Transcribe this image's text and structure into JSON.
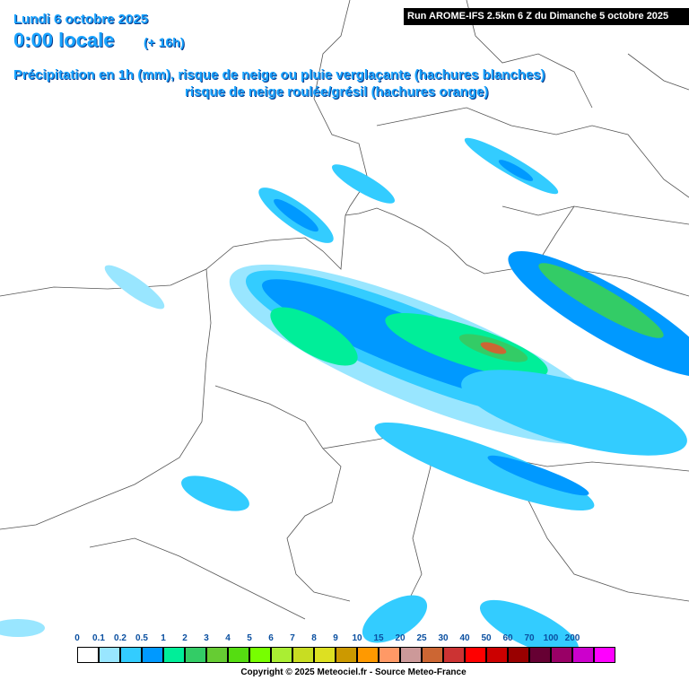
{
  "header": {
    "date": "Lundi 6 octobre 2025",
    "time": "0:00 locale",
    "lead": "(+ 16h)",
    "run": "Run AROME-IFS 2.5km 6 Z du Dimanche 5 octobre 2025",
    "line1": "Précipitation en 1h (mm), risque de neige ou pluie verglaçante (hachures blanches)",
    "line2": "risque de neige roulée/grésil (hachures orange)"
  },
  "legend": {
    "labels": [
      "0",
      "0.1",
      "0.2",
      "0.5",
      "1",
      "2",
      "3",
      "4",
      "5",
      "6",
      "7",
      "8",
      "9",
      "10",
      "15",
      "20",
      "25",
      "30",
      "40",
      "50",
      "60",
      "70",
      "100",
      "200"
    ],
    "colors": [
      "#ffffff",
      "#99e6ff",
      "#33ccff",
      "#0099ff",
      "#00ee99",
      "#33cc66",
      "#66cc33",
      "#55dd11",
      "#77ff00",
      "#aaee33",
      "#c8dd22",
      "#dde022",
      "#cc9900",
      "#ff9900",
      "#ff9966",
      "#cc9999",
      "#cc6633",
      "#cc3333",
      "#ff0000",
      "#cc0000",
      "#990000",
      "#660033",
      "#990066",
      "#cc00cc",
      "#ff00ff"
    ]
  },
  "footer": {
    "copyright": "Copyright © 2025 Meteociel.fr - Source Meteo-France"
  }
}
